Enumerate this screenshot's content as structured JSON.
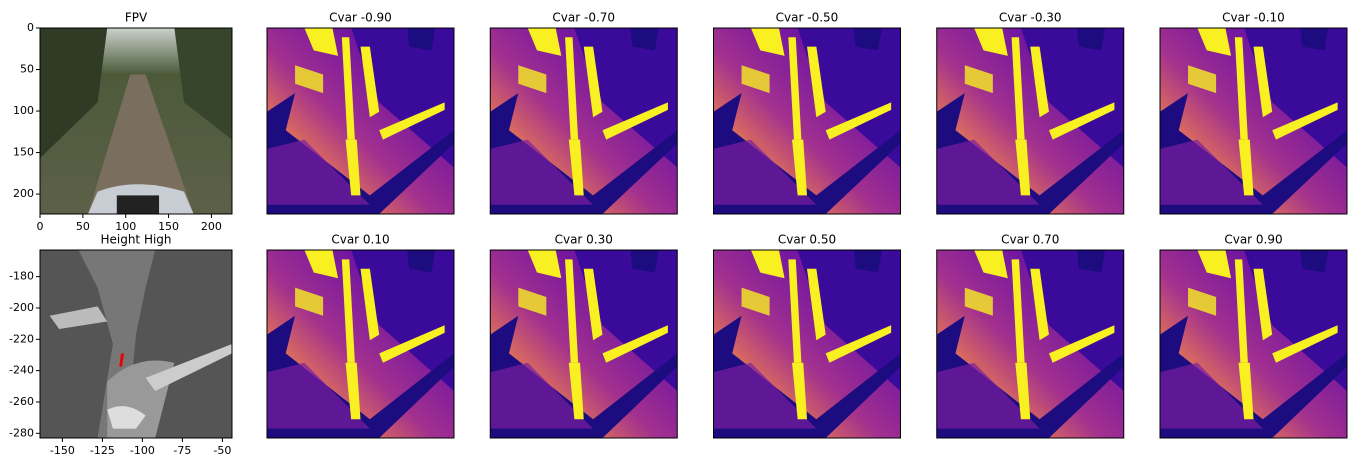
{
  "chart_data": [
    {
      "type": "image",
      "title": "FPV",
      "xlim": [
        0,
        224
      ],
      "ylim": [
        224,
        0
      ],
      "xticks": [
        0,
        50,
        100,
        150,
        200
      ],
      "yticks": [
        0,
        50,
        100,
        150,
        200
      ]
    },
    {
      "type": "image",
      "title": "Height High",
      "xlim": [
        -164,
        -44
      ],
      "ylim": [
        -283,
        -163
      ],
      "xticks": [
        -150,
        -125,
        -100,
        -75,
        -50
      ],
      "yticks": [
        -180,
        -200,
        -220,
        -240,
        -260,
        -280
      ]
    },
    {
      "type": "heatmap",
      "title": "Cvar -0.90"
    },
    {
      "type": "heatmap",
      "title": "Cvar -0.70"
    },
    {
      "type": "heatmap",
      "title": "Cvar -0.50"
    },
    {
      "type": "heatmap",
      "title": "Cvar -0.30"
    },
    {
      "type": "heatmap",
      "title": "Cvar -0.10"
    },
    {
      "type": "heatmap",
      "title": "Cvar 0.10"
    },
    {
      "type": "heatmap",
      "title": "Cvar 0.30"
    },
    {
      "type": "heatmap",
      "title": "Cvar 0.50"
    },
    {
      "type": "heatmap",
      "title": "Cvar 0.70"
    },
    {
      "type": "heatmap",
      "title": "Cvar 0.90"
    }
  ]
}
